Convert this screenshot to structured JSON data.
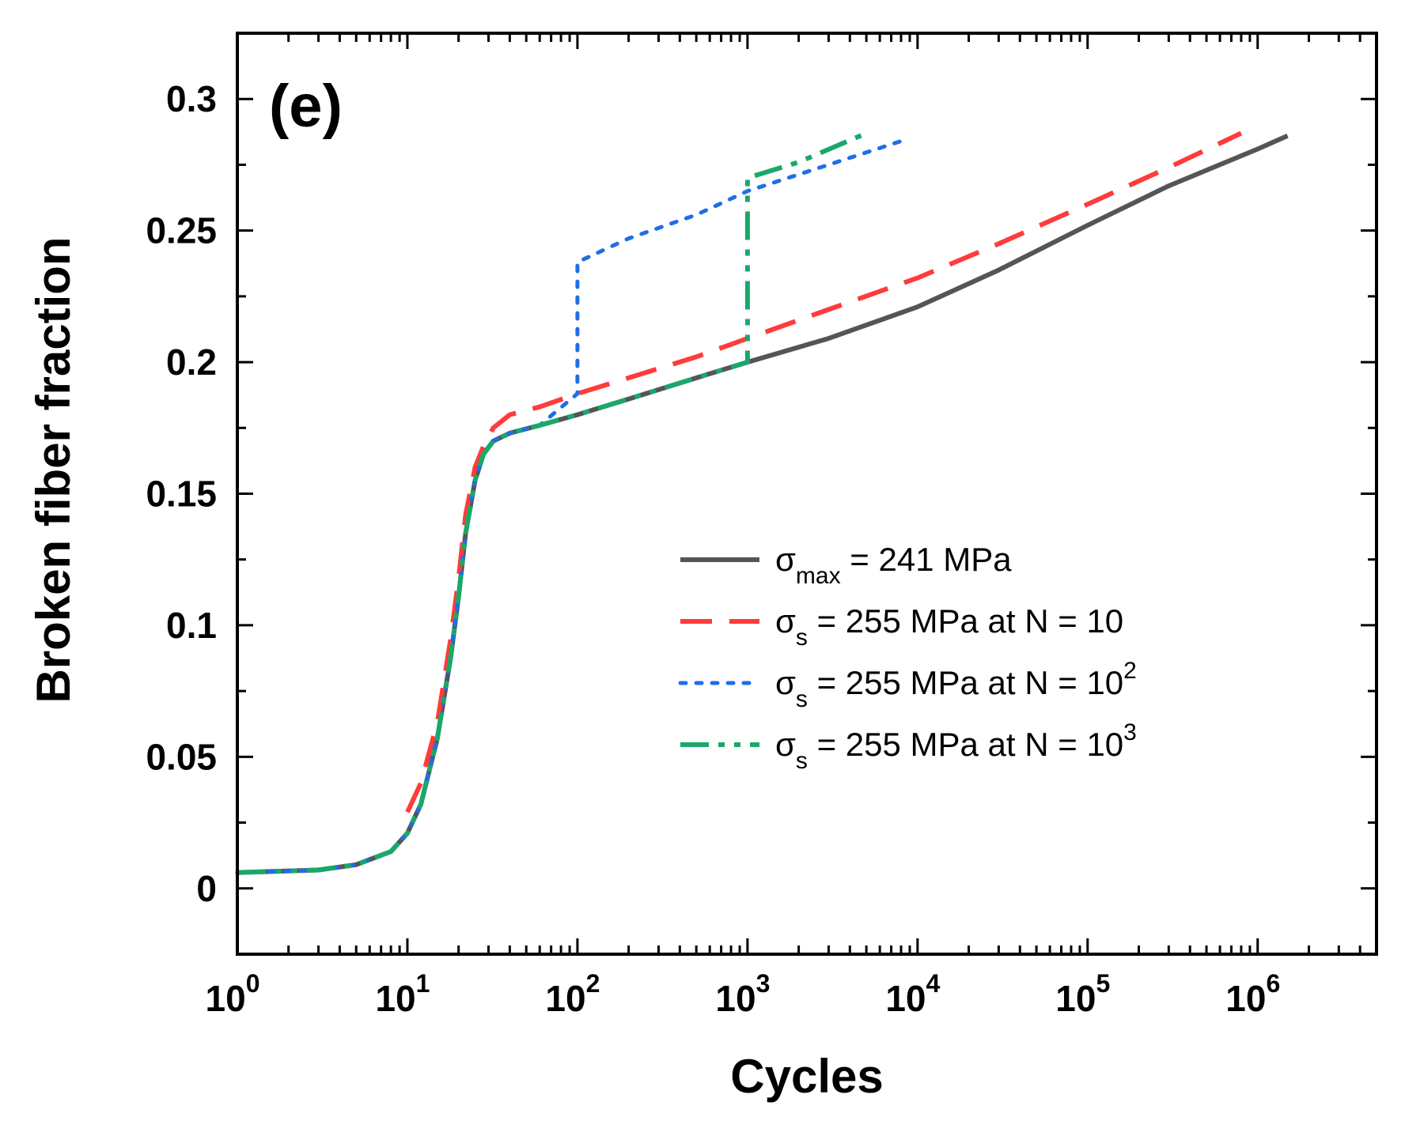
{
  "chart_data": {
    "type": "line",
    "panel_label": "(e)",
    "xlabel": "Cycles",
    "ylabel": "Broken fiber fraction",
    "xscale": "log",
    "xlim": [
      1,
      5000000
    ],
    "ylim": [
      -0.025,
      0.325
    ],
    "x_ticks": [
      {
        "value": 1,
        "base": "10",
        "exp": "0"
      },
      {
        "value": 10,
        "base": "10",
        "exp": "1"
      },
      {
        "value": 100,
        "base": "10",
        "exp": "2"
      },
      {
        "value": 1000,
        "base": "10",
        "exp": "3"
      },
      {
        "value": 10000,
        "base": "10",
        "exp": "4"
      },
      {
        "value": 100000,
        "base": "10",
        "exp": "5"
      },
      {
        "value": 1000000,
        "base": "10",
        "exp": "6"
      }
    ],
    "y_ticks": [
      {
        "value": 0,
        "label": "0"
      },
      {
        "value": 0.05,
        "label": "0.05"
      },
      {
        "value": 0.1,
        "label": "0.1"
      },
      {
        "value": 0.15,
        "label": "0.15"
      },
      {
        "value": 0.2,
        "label": "0.2"
      },
      {
        "value": 0.25,
        "label": "0.25"
      },
      {
        "value": 0.3,
        "label": "0.3"
      }
    ],
    "legend_position": "center-right",
    "series": [
      {
        "id": "s1",
        "color": "#555555",
        "style": "solid",
        "legend": {
          "sym": "σ",
          "sub": "max",
          "text": " = 241 MPa",
          "sup": ""
        },
        "x": [
          1,
          3,
          5,
          8,
          10,
          12,
          15,
          18,
          20,
          22,
          25,
          28,
          32,
          40,
          60,
          100,
          200,
          500,
          1000,
          3000,
          10000,
          30000,
          100000,
          300000,
          1000000,
          1500000
        ],
        "y": [
          0.006,
          0.007,
          0.009,
          0.014,
          0.021,
          0.032,
          0.057,
          0.088,
          0.111,
          0.135,
          0.155,
          0.165,
          0.17,
          0.173,
          0.176,
          0.18,
          0.186,
          0.194,
          0.2,
          0.209,
          0.221,
          0.235,
          0.252,
          0.267,
          0.281,
          0.286
        ]
      },
      {
        "id": "s2",
        "color": "#ff3b3b",
        "style": "dashed",
        "legend": {
          "sym": "σ",
          "sub": "s",
          "text": " = 255 MPa at N = 10",
          "sup": ""
        },
        "x": [
          10,
          12,
          15,
          18,
          20,
          22,
          25,
          28,
          32,
          40,
          60,
          100,
          200,
          500,
          1000,
          3000,
          10000,
          30000,
          100000,
          300000,
          800000
        ],
        "y": [
          0.029,
          0.04,
          0.063,
          0.095,
          0.118,
          0.142,
          0.16,
          0.168,
          0.175,
          0.18,
          0.183,
          0.188,
          0.194,
          0.202,
          0.209,
          0.22,
          0.232,
          0.245,
          0.26,
          0.274,
          0.287
        ]
      },
      {
        "id": "s3",
        "color": "#1e6fe6",
        "style": "dotted",
        "legend": {
          "sym": "σ",
          "sub": "s",
          "text": " = 255 MPa at N = 10",
          "sup": "2"
        },
        "x": [
          1,
          3,
          5,
          8,
          10,
          12,
          15,
          18,
          20,
          22,
          25,
          28,
          32,
          40,
          60,
          100,
          100,
          200,
          500,
          1000,
          3000,
          8000
        ],
        "y": [
          0.006,
          0.007,
          0.009,
          0.014,
          0.021,
          0.032,
          0.057,
          0.088,
          0.111,
          0.135,
          0.155,
          0.165,
          0.17,
          0.173,
          0.176,
          0.188,
          0.238,
          0.247,
          0.256,
          0.265,
          0.275,
          0.284
        ]
      },
      {
        "id": "s4",
        "color": "#1aa86a",
        "style": "dash-dot-dot",
        "legend": {
          "sym": "σ",
          "sub": "s",
          "text": " = 255 MPa at N = 10",
          "sup": "3"
        },
        "x": [
          1,
          3,
          5,
          8,
          10,
          12,
          15,
          18,
          20,
          22,
          25,
          28,
          32,
          40,
          60,
          100,
          200,
          500,
          1000,
          1000,
          2000,
          5000
        ],
        "y": [
          0.006,
          0.007,
          0.009,
          0.014,
          0.021,
          0.032,
          0.057,
          0.088,
          0.111,
          0.135,
          0.155,
          0.165,
          0.17,
          0.173,
          0.176,
          0.18,
          0.186,
          0.194,
          0.2,
          0.27,
          0.276,
          0.287
        ]
      }
    ]
  }
}
